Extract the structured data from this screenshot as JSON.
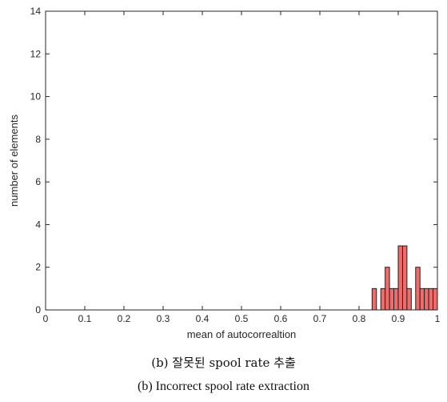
{
  "chart_data": {
    "type": "bar",
    "title": "",
    "xlabel": "mean of autocorrealtion",
    "ylabel": "number of elements",
    "xlim": [
      0,
      1
    ],
    "ylim": [
      0,
      14
    ],
    "xticks": [
      "0",
      "0.1",
      "0.2",
      "0.3",
      "0.4",
      "0.5",
      "0.6",
      "0.7",
      "0.8",
      "0.9",
      "1"
    ],
    "yticks": [
      "0",
      "2",
      "4",
      "6",
      "8",
      "10",
      "12",
      "14"
    ],
    "bin_width": 0.0111,
    "bins": [
      {
        "x": 0.8389,
        "count": 1
      },
      {
        "x": 0.8611,
        "count": 1
      },
      {
        "x": 0.8722,
        "count": 2
      },
      {
        "x": 0.8833,
        "count": 1
      },
      {
        "x": 0.8944,
        "count": 1
      },
      {
        "x": 0.9056,
        "count": 3
      },
      {
        "x": 0.9167,
        "count": 3
      },
      {
        "x": 0.9278,
        "count": 1
      },
      {
        "x": 0.95,
        "count": 2
      },
      {
        "x": 0.9611,
        "count": 1
      },
      {
        "x": 0.9722,
        "count": 1
      },
      {
        "x": 0.9833,
        "count": 1
      },
      {
        "x": 0.9944,
        "count": 1
      }
    ],
    "grid": false,
    "colors": {
      "bar_fill": "#f26b6b",
      "bar_edge": "#202020",
      "axis": "#262626",
      "text": "#262626"
    }
  },
  "captions": {
    "korean": "(b) 잘못된 spool rate 추출",
    "english": "(b) Incorrect spool rate extraction"
  }
}
